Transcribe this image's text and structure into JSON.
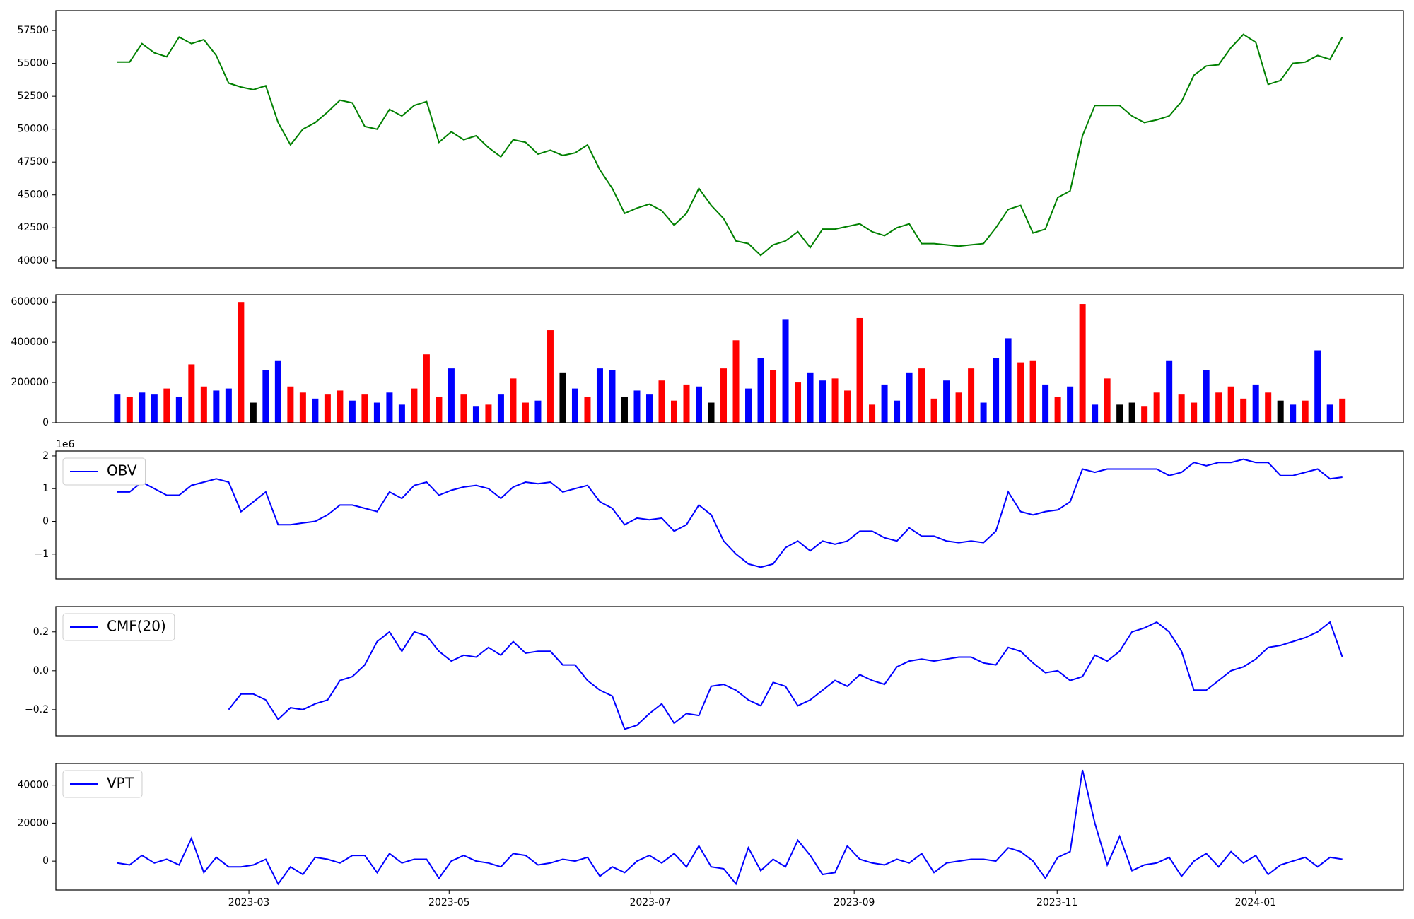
{
  "chart_data": [
    {
      "type": "line",
      "color": "#008000",
      "xlim": [
        -4.96,
        103.93
      ],
      "ylim": [
        39450,
        59010
      ],
      "yticks": [
        40000,
        42500,
        45000,
        47500,
        50000,
        52500,
        55000,
        57500
      ],
      "values": [
        55100,
        55100,
        56500,
        55800,
        55500,
        57000,
        56500,
        56800,
        55600,
        53500,
        53200,
        53000,
        53300,
        50500,
        48800,
        50000,
        50500,
        51300,
        52200,
        52000,
        50200,
        50000,
        51500,
        51000,
        51800,
        52100,
        49000,
        49800,
        49200,
        49500,
        48600,
        47900,
        49200,
        49000,
        48100,
        48400,
        48000,
        48200,
        48800,
        46900,
        45500,
        43600,
        44000,
        44300,
        43800,
        42700,
        43600,
        45500,
        44200,
        43200,
        41500,
        41300,
        40400,
        41200,
        41500,
        42200,
        41000,
        42400,
        42400,
        42600,
        42800,
        42200,
        41900,
        42500,
        42800,
        41300,
        41300,
        41200,
        41100,
        41200,
        41300,
        42500,
        43900,
        44200,
        42100,
        42400,
        44800,
        45300,
        49500,
        51800,
        51800,
        51800,
        51000,
        50500,
        50700,
        51000,
        52100,
        54100,
        54800,
        54900,
        56200,
        57200,
        56600,
        53400,
        53700,
        55000,
        55100,
        55600,
        55300,
        57000
      ]
    },
    {
      "type": "bar",
      "xlim": [
        -4.96,
        103.93
      ],
      "ylim": [
        0,
        635800
      ],
      "yticks": [
        0,
        200000,
        400000,
        600000
      ],
      "values": [
        140000,
        130000,
        150000,
        140000,
        170000,
        130000,
        290000,
        180000,
        160000,
        170000,
        600000,
        100000,
        260000,
        310000,
        180000,
        150000,
        120000,
        140000,
        160000,
        110000,
        140000,
        100000,
        150000,
        90000,
        170000,
        340000,
        130000,
        270000,
        140000,
        80000,
        90000,
        140000,
        220000,
        100000,
        110000,
        460000,
        250000,
        170000,
        130000,
        270000,
        260000,
        130000,
        160000,
        140000,
        210000,
        110000,
        190000,
        180000,
        100000,
        270000,
        410000,
        170000,
        320000,
        260000,
        515000,
        200000,
        250000,
        210000,
        220000,
        160000,
        520000,
        90000,
        190000,
        110000,
        250000,
        270000,
        120000,
        210000,
        150000,
        270000,
        100000,
        320000,
        420000,
        300000,
        310000,
        190000,
        130000,
        180000,
        590000,
        90000,
        220000,
        90000,
        100000,
        80000,
        150000,
        310000,
        140000,
        100000,
        260000,
        150000,
        180000,
        120000,
        190000,
        150000,
        110000,
        90000,
        110000,
        360000,
        90000,
        120000
      ],
      "colors": [
        "#0000ff",
        "#ff0000",
        "#0000ff",
        "#0000ff",
        "#ff0000",
        "#0000ff",
        "#ff0000",
        "#ff0000",
        "#0000ff",
        "#0000ff",
        "#ff0000",
        "#000000",
        "#0000ff",
        "#0000ff",
        "#ff0000",
        "#ff0000",
        "#0000ff",
        "#ff0000",
        "#ff0000",
        "#0000ff",
        "#ff0000",
        "#0000ff",
        "#0000ff",
        "#0000ff",
        "#ff0000",
        "#ff0000",
        "#ff0000",
        "#0000ff",
        "#ff0000",
        "#0000ff",
        "#ff0000",
        "#0000ff",
        "#ff0000",
        "#ff0000",
        "#0000ff",
        "#ff0000",
        "#000000",
        "#0000ff",
        "#ff0000",
        "#0000ff",
        "#0000ff",
        "#000000",
        "#0000ff",
        "#0000ff",
        "#ff0000",
        "#ff0000",
        "#ff0000",
        "#0000ff",
        "#000000",
        "#ff0000",
        "#ff0000",
        "#0000ff",
        "#0000ff",
        "#ff0000",
        "#0000ff",
        "#ff0000",
        "#0000ff",
        "#0000ff",
        "#ff0000",
        "#ff0000",
        "#ff0000",
        "#ff0000",
        "#0000ff",
        "#0000ff",
        "#0000ff",
        "#ff0000",
        "#ff0000",
        "#0000ff",
        "#ff0000",
        "#ff0000",
        "#0000ff",
        "#0000ff",
        "#0000ff",
        "#ff0000",
        "#ff0000",
        "#0000ff",
        "#ff0000",
        "#0000ff",
        "#ff0000",
        "#0000ff",
        "#ff0000",
        "#000000",
        "#000000",
        "#ff0000",
        "#ff0000",
        "#0000ff",
        "#ff0000",
        "#ff0000",
        "#0000ff",
        "#ff0000",
        "#ff0000",
        "#ff0000",
        "#0000ff",
        "#ff0000",
        "#000000",
        "#0000ff",
        "#ff0000",
        "#0000ff",
        "#0000ff",
        "#ff0000"
      ]
    },
    {
      "type": "line",
      "xlim": [
        -4.96,
        103.93
      ],
      "ylim": [
        -1.76,
        2.15
      ],
      "y_offset_label": "1e6",
      "yticks": [
        {
          "value": -1,
          "label": "−1"
        },
        0,
        1,
        2
      ],
      "legend": "upper left",
      "series": [
        {
          "name": "OBV",
          "color": "#0000ff",
          "values": [
            0.9,
            0.9,
            1.2,
            1.0,
            0.8,
            0.8,
            1.1,
            1.2,
            1.3,
            1.2,
            0.3,
            0.6,
            0.9,
            -0.1,
            -0.1,
            -0.05,
            0.0,
            0.2,
            0.5,
            0.5,
            0.4,
            0.3,
            0.9,
            0.7,
            1.1,
            1.2,
            0.8,
            0.95,
            1.05,
            1.1,
            1.0,
            0.7,
            1.05,
            1.2,
            1.15,
            1.2,
            0.9,
            1.0,
            1.1,
            0.6,
            0.4,
            -0.1,
            0.1,
            0.05,
            0.1,
            -0.3,
            -0.1,
            0.5,
            0.2,
            -0.6,
            -1.0,
            -1.3,
            -1.4,
            -1.3,
            -0.8,
            -0.6,
            -0.9,
            -0.6,
            -0.7,
            -0.6,
            -0.3,
            -0.3,
            -0.5,
            -0.6,
            -0.2,
            -0.45,
            -0.45,
            -0.6,
            -0.65,
            -0.6,
            -0.65,
            -0.3,
            0.9,
            0.3,
            0.2,
            0.3,
            0.35,
            0.6,
            1.6,
            1.5,
            1.6,
            1.6,
            1.6,
            1.6,
            1.6,
            1.4,
            1.5,
            1.8,
            1.7,
            1.8,
            1.8,
            1.9,
            1.8,
            1.8,
            1.4,
            1.4,
            1.5,
            1.6,
            1.3,
            1.35
          ]
        }
      ]
    },
    {
      "type": "line",
      "xlim": [
        -4.96,
        103.93
      ],
      "ylim": [
        -0.335,
        0.33
      ],
      "yticks": [
        {
          "value": -0.2,
          "label": "−0.2"
        },
        {
          "value": 0,
          "label": "0.0"
        },
        0.2
      ],
      "legend": "upper left",
      "series": [
        {
          "name": "CMF(20)",
          "color": "#0000ff",
          "values": [
            null,
            null,
            null,
            null,
            null,
            null,
            null,
            null,
            null,
            -0.2,
            -0.12,
            -0.12,
            -0.15,
            -0.25,
            -0.19,
            -0.2,
            -0.17,
            -0.15,
            -0.05,
            -0.03,
            0.03,
            0.15,
            0.2,
            0.1,
            0.2,
            0.18,
            0.1,
            0.05,
            0.08,
            0.07,
            0.12,
            0.08,
            0.15,
            0.09,
            0.1,
            0.1,
            0.03,
            0.03,
            -0.05,
            -0.1,
            -0.13,
            -0.3,
            -0.28,
            -0.22,
            -0.17,
            -0.27,
            -0.22,
            -0.23,
            -0.08,
            -0.07,
            -0.1,
            -0.15,
            -0.18,
            -0.06,
            -0.08,
            -0.18,
            -0.15,
            -0.1,
            -0.05,
            -0.08,
            -0.02,
            -0.05,
            -0.07,
            0.02,
            0.05,
            0.06,
            0.05,
            0.06,
            0.07,
            0.07,
            0.04,
            0.03,
            0.12,
            0.1,
            0.04,
            -0.01,
            0.0,
            -0.05,
            -0.03,
            0.08,
            0.05,
            0.1,
            0.2,
            0.22,
            0.25,
            0.2,
            0.1,
            -0.1,
            -0.1,
            -0.05,
            0.0,
            0.02,
            0.06,
            0.12,
            0.13,
            0.15,
            0.17,
            0.2,
            0.25,
            0.07
          ]
        }
      ]
    },
    {
      "type": "line",
      "xlim": [
        -4.96,
        103.93
      ],
      "ylim": [
        -15200,
        51400
      ],
      "yticks": [
        0,
        20000,
        40000
      ],
      "legend": "upper left",
      "xticks": [
        {
          "value": 10.64,
          "label": "2023-03"
        },
        {
          "value": 26.82,
          "label": "2023-05"
        },
        {
          "value": 43.07,
          "label": "2023-07"
        },
        {
          "value": 59.55,
          "label": "2023-09"
        },
        {
          "value": 75.95,
          "label": "2023-11"
        },
        {
          "value": 91.98,
          "label": "2024-01"
        }
      ],
      "series": [
        {
          "name": "VPT",
          "color": "#0000ff",
          "values": [
            -1000,
            -2000,
            3000,
            -1000,
            1000,
            -2000,
            12000,
            -6000,
            2000,
            -3000,
            -3000,
            -2000,
            1000,
            -12000,
            -3000,
            -7000,
            2000,
            1000,
            -1000,
            3000,
            3000,
            -6000,
            4000,
            -1000,
            1000,
            1000,
            -9000,
            0,
            3000,
            0,
            -1000,
            -3000,
            4000,
            3000,
            -2000,
            -1000,
            1000,
            0,
            2000,
            -8000,
            -3000,
            -6000,
            0,
            3000,
            -1000,
            4000,
            -3000,
            8000,
            -3000,
            -4000,
            -12000,
            7000,
            -5000,
            1000,
            -3000,
            11000,
            3000,
            -7000,
            -6000,
            8000,
            1000,
            -1000,
            -2000,
            1000,
            -1000,
            4000,
            -6000,
            -1000,
            0,
            1000,
            1000,
            0,
            7000,
            5000,
            0,
            -9000,
            2000,
            5000,
            48000,
            20000,
            -2000,
            13000,
            -5000,
            -2000,
            -1000,
            2000,
            -8000,
            0,
            4000,
            -3000,
            5000,
            -1000,
            3000,
            -7000,
            -2000,
            0,
            2000,
            -3000,
            2000,
            1000
          ]
        }
      ]
    }
  ]
}
